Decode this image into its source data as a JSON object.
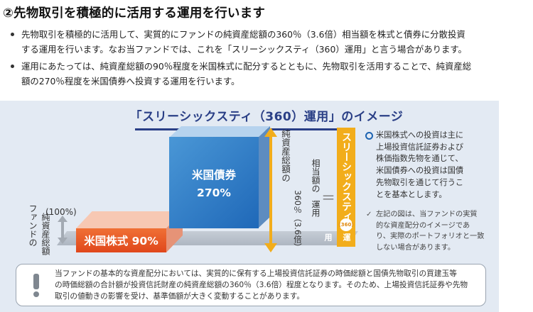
{
  "heading": "②先物取引を積極的に活用する運用を行います",
  "bullets": [
    {
      "line1": "先物取引を積極的に活用して、実質的にファンドの純資産総額の360％（3.6倍）相当額を株式と債券に分散投資",
      "line2": "する運用を行います。なお当ファンドでは、これを「スリーシックスティ（360）運用」と言う場合があります。"
    },
    {
      "line1": "運用にあたっては、純資産総額の90％程度を米国株式に配分するとともに、先物取引を活用することで、純資産総",
      "line2": "額の270％程度を米国債券へ投資する運用を行います。"
    }
  ],
  "diagram": {
    "title": "「スリーシックスティ（360）運用」のイメージ",
    "left_pct": "(100%)",
    "left_vertical": "純資産総額",
    "left_vertical_sub": "ファンドの",
    "stocks_label": "米国株式 90%",
    "bonds_label": "米国債券",
    "bonds_pct": "270%",
    "total_vertical_1": "純資産総額の",
    "total_vertical_2": "360％（3.6倍）",
    "equiv_vertical_1": "相当額の",
    "equiv_vertical_2": "運用",
    "equals": "＝",
    "bar_vertical": "スリーシックスティ",
    "bar_badge": "(360)",
    "bar_vertical_2": "運用",
    "colors": {
      "stocks": "#e0471b",
      "bonds": "#1f68b8",
      "bar": "#f2ad1b",
      "title": "#2a3f86"
    }
  },
  "notes": {
    "main": [
      "米国株式への投資は主に",
      "上場投資信託証券および",
      "株価指数先物を通じて、",
      "米国債券への投資は国債",
      "先物取引を通じて行うこ",
      "とを基本とします。"
    ],
    "sub": [
      "左記の図は、当ファンドの実質",
      "的な資産配分のイメージであ",
      "り、実際のポートフォリオと一致",
      "しない場合があります。"
    ]
  },
  "warning": {
    "icon": "exclamation-icon",
    "lines": [
      "当ファンドの基本的な資産配分においては、実質的に保有する上場投資信託証券の時価総額と国債先物取引の買建玉等",
      "の時価総額の合計額が投資信託財産の純資産総額の360％（3.6倍）程度となります。そのため、上場投資信託証券や先物",
      "取引の値動きの影響を受け、基準価額が大きく変動することがあります。"
    ]
  }
}
